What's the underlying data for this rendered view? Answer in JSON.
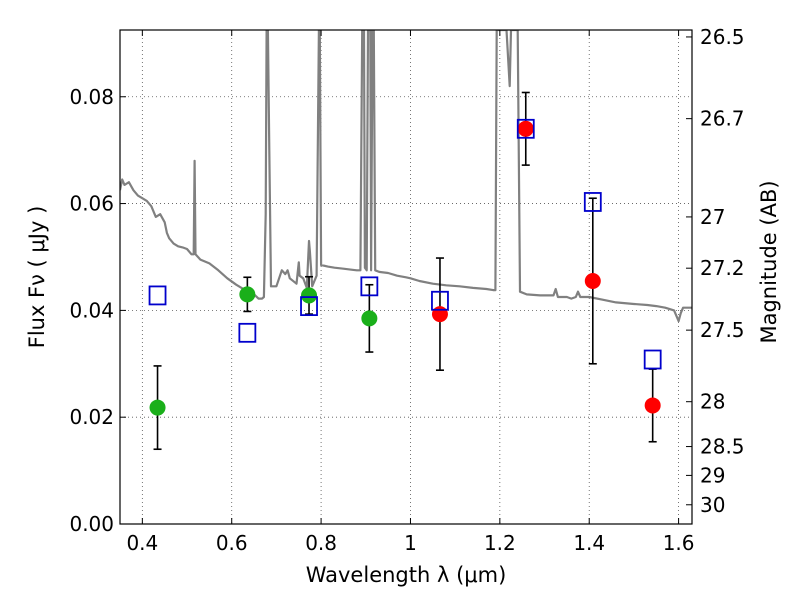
{
  "chart_data": {
    "type": "scatter",
    "xlabel": "Wavelength  λ (μm)",
    "ylabel": "Flux  Fν  ( μJy )",
    "y2label": "Magnitude (AB)",
    "xlim": [
      0.35,
      1.63
    ],
    "ylim": [
      0.0,
      0.0925
    ],
    "x_ticks": [
      0.4,
      0.6,
      0.8,
      1.0,
      1.2,
      1.4,
      1.6
    ],
    "x_tick_labels": [
      "0.4",
      "0.6",
      "0.8",
      "1",
      "1.2",
      "1.4",
      "1.6"
    ],
    "y_ticks": [
      0.0,
      0.02,
      0.04,
      0.06,
      0.08
    ],
    "y_tick_labels": [
      "0.00",
      "0.02",
      "0.04",
      "0.06",
      "0.08"
    ],
    "right_ticks": [
      {
        "label": "26.5",
        "flux": 0.0912
      },
      {
        "label": "26.7",
        "flux": 0.0759
      },
      {
        "label": "27",
        "flux": 0.0575
      },
      {
        "label": "27.2",
        "flux": 0.0479
      },
      {
        "label": "27.5",
        "flux": 0.0363
      },
      {
        "label": "28",
        "flux": 0.0229
      },
      {
        "label": "28.5",
        "flux": 0.0145
      },
      {
        "label": "29",
        "flux": 0.0091
      },
      {
        "label": "30",
        "flux": 0.0036
      }
    ],
    "grid": true,
    "series": [
      {
        "style": "line",
        "color": "#808080",
        "points": [
          [
            0.35,
            0.0625
          ],
          [
            0.355,
            0.0645
          ],
          [
            0.36,
            0.0635
          ],
          [
            0.37,
            0.064
          ],
          [
            0.38,
            0.0625
          ],
          [
            0.39,
            0.0615
          ],
          [
            0.4,
            0.061
          ],
          [
            0.41,
            0.0605
          ],
          [
            0.42,
            0.0595
          ],
          [
            0.43,
            0.0575
          ],
          [
            0.44,
            0.058
          ],
          [
            0.45,
            0.0565
          ],
          [
            0.455,
            0.0545
          ],
          [
            0.46,
            0.0535
          ],
          [
            0.47,
            0.0525
          ],
          [
            0.48,
            0.052
          ],
          [
            0.49,
            0.0518
          ],
          [
            0.5,
            0.0515
          ],
          [
            0.51,
            0.0505
          ],
          [
            0.515,
            0.0505
          ],
          [
            0.517,
            0.068
          ],
          [
            0.519,
            0.0505
          ],
          [
            0.53,
            0.0495
          ],
          [
            0.55,
            0.0488
          ],
          [
            0.57,
            0.0475
          ],
          [
            0.59,
            0.046
          ],
          [
            0.61,
            0.0448
          ],
          [
            0.63,
            0.0438
          ],
          [
            0.65,
            0.043
          ],
          [
            0.66,
            0.0422
          ],
          [
            0.668,
            0.0422
          ],
          [
            0.672,
            0.0425
          ],
          [
            0.676,
            0.058
          ],
          [
            0.678,
            0.0925
          ],
          [
            0.681,
            0.0925
          ],
          [
            0.684,
            0.07
          ],
          [
            0.688,
            0.0445
          ],
          [
            0.7,
            0.0445
          ],
          [
            0.712,
            0.0475
          ],
          [
            0.72,
            0.0468
          ],
          [
            0.725,
            0.0475
          ],
          [
            0.73,
            0.046
          ],
          [
            0.745,
            0.045
          ],
          [
            0.75,
            0.049
          ],
          [
            0.752,
            0.0465
          ],
          [
            0.76,
            0.046
          ],
          [
            0.768,
            0.0442
          ],
          [
            0.773,
            0.053
          ],
          [
            0.775,
            0.051
          ],
          [
            0.78,
            0.0445
          ],
          [
            0.79,
            0.0465
          ],
          [
            0.795,
            0.0925
          ],
          [
            0.797,
            0.0925
          ],
          [
            0.8,
            0.0485
          ],
          [
            0.815,
            0.0482
          ],
          [
            0.83,
            0.048
          ],
          [
            0.85,
            0.0478
          ],
          [
            0.87,
            0.0476
          ],
          [
            0.88,
            0.0475
          ],
          [
            0.888,
            0.0475
          ],
          [
            0.892,
            0.0925
          ],
          [
            0.896,
            0.0925
          ],
          [
            0.898,
            0.048
          ],
          [
            0.902,
            0.0475
          ],
          [
            0.905,
            0.0925
          ],
          [
            0.91,
            0.0925
          ],
          [
            0.912,
            0.0475
          ],
          [
            0.915,
            0.0925
          ],
          [
            0.918,
            0.0925
          ],
          [
            0.921,
            0.0475
          ],
          [
            0.93,
            0.0472
          ],
          [
            0.95,
            0.047
          ],
          [
            0.97,
            0.0465
          ],
          [
            0.99,
            0.0462
          ],
          [
            1.0,
            0.046
          ],
          [
            1.02,
            0.0455
          ],
          [
            1.05,
            0.045
          ],
          [
            1.08,
            0.0447
          ],
          [
            1.11,
            0.0445
          ],
          [
            1.14,
            0.0442
          ],
          [
            1.17,
            0.044
          ],
          [
            1.185,
            0.0438
          ],
          [
            1.19,
            0.0438
          ],
          [
            1.193,
            0.0925
          ],
          [
            1.196,
            0.0925
          ],
          [
            1.198,
            0.0925
          ],
          [
            1.215,
            0.0925
          ],
          [
            1.222,
            0.082
          ],
          [
            1.225,
            0.0925
          ],
          [
            1.24,
            0.0925
          ],
          [
            1.245,
            0.0435
          ],
          [
            1.26,
            0.043
          ],
          [
            1.29,
            0.0428
          ],
          [
            1.32,
            0.0428
          ],
          [
            1.325,
            0.044
          ],
          [
            1.33,
            0.0425
          ],
          [
            1.35,
            0.0425
          ],
          [
            1.36,
            0.0422
          ],
          [
            1.37,
            0.0425
          ],
          [
            1.375,
            0.0435
          ],
          [
            1.38,
            0.0425
          ],
          [
            1.4,
            0.0425
          ],
          [
            1.43,
            0.042
          ],
          [
            1.46,
            0.0415
          ],
          [
            1.5,
            0.0412
          ],
          [
            1.53,
            0.041
          ],
          [
            1.55,
            0.0408
          ],
          [
            1.57,
            0.0405
          ],
          [
            1.59,
            0.04
          ],
          [
            1.6,
            0.038
          ],
          [
            1.605,
            0.0395
          ],
          [
            1.61,
            0.0405
          ],
          [
            1.63,
            0.0405
          ]
        ]
      },
      {
        "style": "marker-circle",
        "color": "#1aaf1a",
        "points": [
          {
            "x": 0.434,
            "y": 0.0218,
            "err": 0.0078
          },
          {
            "x": 0.635,
            "y": 0.043,
            "err": 0.0032
          },
          {
            "x": 0.773,
            "y": 0.0428,
            "err": 0.0035
          },
          {
            "x": 0.908,
            "y": 0.0385,
            "err": 0.0063
          }
        ]
      },
      {
        "style": "marker-circle",
        "color": "#ff0000",
        "points": [
          {
            "x": 1.066,
            "y": 0.0393,
            "err": 0.0105
          },
          {
            "x": 1.258,
            "y": 0.074,
            "err": 0.0068
          },
          {
            "x": 1.408,
            "y": 0.0455,
            "err": 0.0155
          },
          {
            "x": 1.542,
            "y": 0.0222,
            "err": 0.0068
          }
        ]
      },
      {
        "style": "marker-square-open",
        "color": "#0000cc",
        "points": [
          {
            "x": 0.434,
            "y": 0.0428
          },
          {
            "x": 0.635,
            "y": 0.0358
          },
          {
            "x": 0.773,
            "y": 0.0408
          },
          {
            "x": 0.908,
            "y": 0.0445
          },
          {
            "x": 1.066,
            "y": 0.0418
          },
          {
            "x": 1.258,
            "y": 0.074
          },
          {
            "x": 1.408,
            "y": 0.0603
          },
          {
            "x": 1.542,
            "y": 0.0308
          }
        ]
      }
    ]
  }
}
